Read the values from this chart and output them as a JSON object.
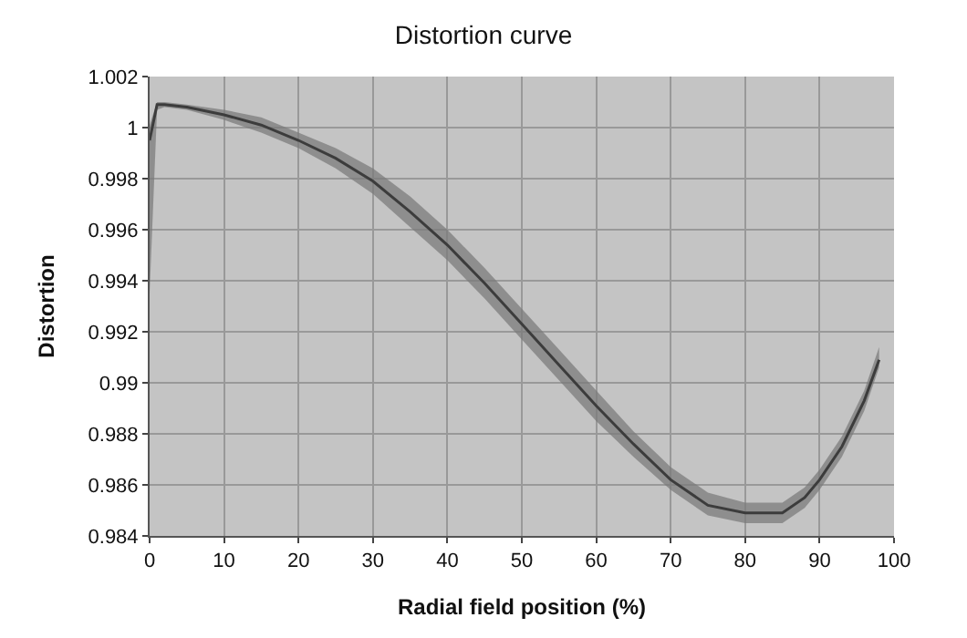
{
  "chart_data": {
    "type": "line",
    "title": "Distortion curve",
    "xlabel": "Radial field position (%)",
    "ylabel": "Distortion",
    "x": [
      0,
      1,
      2,
      5,
      10,
      15,
      20,
      25,
      30,
      35,
      40,
      45,
      50,
      55,
      60,
      65,
      70,
      75,
      80,
      85,
      88,
      90,
      93,
      96,
      98
    ],
    "series": [
      {
        "color": "#3c3c3c",
        "values": [
          0.9995,
          1.0009,
          1.0009,
          1.0008,
          1.0005,
          1.0001,
          0.9995,
          0.9988,
          0.9979,
          0.9967,
          0.9954,
          0.9939,
          0.9923,
          0.9907,
          0.9891,
          0.9876,
          0.9862,
          0.9852,
          0.9849,
          0.9849,
          0.9855,
          0.9862,
          0.9875,
          0.9893,
          0.9909
        ],
        "lower": [
          0.9935,
          1.0007,
          1.0008,
          1.0007,
          1.0003,
          0.9998,
          0.9992,
          0.9984,
          0.9974,
          0.9961,
          0.9948,
          0.9933,
          0.9917,
          0.9901,
          0.9885,
          0.9871,
          0.9858,
          0.9848,
          0.9845,
          0.9845,
          0.9851,
          0.9858,
          0.9871,
          0.9889,
          0.9906
        ],
        "upper": [
          1.0001,
          1.001,
          1.001,
          1.0009,
          1.0007,
          1.0004,
          0.9998,
          0.9992,
          0.9984,
          0.9973,
          0.996,
          0.9945,
          0.9929,
          0.9913,
          0.9897,
          0.9881,
          0.9867,
          0.9857,
          0.9853,
          0.9853,
          0.9859,
          0.9866,
          0.9879,
          0.9897,
          0.9914
        ]
      }
    ],
    "xlim": [
      0,
      100
    ],
    "xticks": [
      0,
      10,
      20,
      30,
      40,
      50,
      60,
      70,
      80,
      90,
      100
    ],
    "ylim": [
      0.984,
      1.002
    ],
    "yticks": [
      0.984,
      0.986,
      0.988,
      0.99,
      0.992,
      0.994,
      0.996,
      0.998,
      1,
      1.002
    ],
    "grid": true
  }
}
